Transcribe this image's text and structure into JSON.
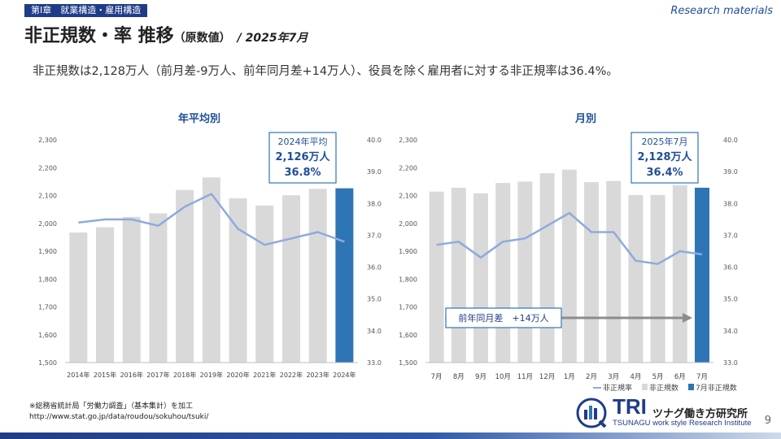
{
  "header": {
    "chapter": "第Ⅰ章　就業構造・雇用構造",
    "research_label": "Research materials",
    "title": "非正規数・率 推移",
    "title_sub": "（原数値）",
    "title_date": "/ 2025年7月",
    "summary": "非正規数は2,128万人（前月差-9万人、前年同月差+14万人）、役員を除く雇用者に対する非正規率は36.4%。"
  },
  "colors": {
    "bar_grey": "#d9d9d9",
    "bar_highlight": "#2e75b6",
    "rate_line": "#8faadc",
    "accent": "#1f4e99"
  },
  "chart_data": [
    {
      "type": "bar",
      "title": "年平均別",
      "categories": [
        "2014年",
        "2015年",
        "2016年",
        "2017年",
        "2018年",
        "2019年",
        "2020年",
        "2021年",
        "2022年",
        "2023年",
        "2024年"
      ],
      "series": [
        {
          "values": [
            1967,
            1986,
            2023,
            2036,
            2120,
            2165,
            2090,
            2064,
            2101,
            2124,
            2126
          ]
        },
        {
          "values": [
            37.4,
            37.5,
            37.5,
            37.3,
            37.9,
            38.3,
            37.2,
            36.7,
            36.9,
            37.1,
            36.8
          ]
        }
      ],
      "y_left": {
        "min": 1500,
        "max": 2300,
        "step": 100,
        "ticks": [
          "1,500",
          "1,600",
          "1,700",
          "1,800",
          "1,900",
          "2,000",
          "2,100",
          "2,200",
          "2,300"
        ]
      },
      "y_right": {
        "min": 33.0,
        "max": 40.0,
        "step": 1.0,
        "ticks": [
          "33.0",
          "34.0",
          "35.0",
          "36.0",
          "37.0",
          "38.0",
          "39.0",
          "40.0"
        ]
      },
      "callout": [
        "2024年平均",
        "2,126万人",
        "36.8%"
      ]
    },
    {
      "type": "bar",
      "title": "月別",
      "categories": [
        "7月",
        "8月",
        "9月",
        "10月",
        "11月",
        "12月",
        "1月",
        "2月",
        "3月",
        "4月",
        "5月",
        "6月",
        "7月"
      ],
      "series": [
        {
          "name": "非正規数",
          "values": [
            2114,
            2128,
            2108,
            2145,
            2150,
            2180,
            2193,
            2148,
            2152,
            2102,
            2102,
            2137,
            2128
          ]
        },
        {
          "name": "非正規率",
          "values": [
            36.7,
            36.8,
            36.3,
            36.8,
            36.9,
            37.3,
            37.7,
            37.1,
            37.1,
            36.2,
            36.1,
            36.5,
            36.4
          ]
        }
      ],
      "highlight_series_name": "7月非正規数",
      "y_left": {
        "min": 1500,
        "max": 2300,
        "step": 100,
        "ticks": [
          "1,500",
          "1,600",
          "1,700",
          "1,800",
          "1,900",
          "2,000",
          "2,100",
          "2,200",
          "2,300"
        ]
      },
      "y_right": {
        "min": 33.0,
        "max": 40.0,
        "step": 1.0,
        "ticks": [
          "33.0",
          "34.0",
          "35.0",
          "36.0",
          "37.0",
          "38.0",
          "39.0",
          "40.0"
        ]
      },
      "callout": [
        "2025年7月",
        "2,128万人",
        "36.4%"
      ],
      "annotation": "前年同月差　+14万人",
      "legend": [
        "非正規率",
        "非正規数",
        "7月非正規数"
      ]
    }
  ],
  "footer": {
    "source_note": "※総務省統計局「労働力調査」（基本集計）を加工",
    "source_url": "http://www.stat.go.jp/data/roudou/sokuhou/tsuki/",
    "logo_tri": "TRI",
    "logo_jp": "ツナグ働き方研究所",
    "logo_en": "TSUNAGU work style Research Institute",
    "page_number": "9"
  }
}
